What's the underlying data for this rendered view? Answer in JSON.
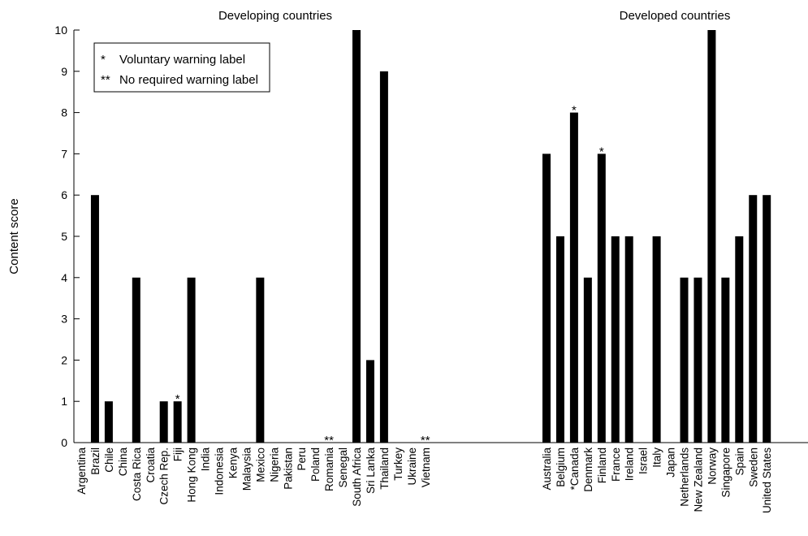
{
  "chart_data": {
    "type": "bar",
    "ylabel": "Content score",
    "ylim": [
      0,
      10
    ],
    "yticks": [
      0,
      1,
      2,
      3,
      4,
      5,
      6,
      7,
      8,
      9,
      10
    ],
    "group_labels": [
      "Developing countries",
      "Developed countries"
    ],
    "legend": [
      {
        "mark": "*",
        "label": "Voluntary warning label"
      },
      {
        "mark": "**",
        "label": "No required warning label"
      }
    ],
    "bar_color": "#000000",
    "groups": [
      {
        "name": "Developing countries",
        "categories": [
          "Argentina",
          "Brazil",
          "Chile",
          "China",
          "Costa Rica",
          "Croatia",
          "Czech Rep.",
          "Fiji",
          "Hong Kong",
          "India",
          "Indonesia",
          "Kenya",
          "Malaysia",
          "Mexico",
          "Nigeria",
          "Pakistan",
          "Peru",
          "Poland",
          "Romania",
          "Senegal",
          "South Africa",
          "Sri Lanka",
          "Thailand",
          "Turkey",
          "Ukraine",
          "Vietnam"
        ],
        "values": [
          0,
          6,
          1,
          0,
          4,
          0,
          1,
          1,
          4,
          0,
          0,
          0,
          0,
          4,
          0,
          0,
          0,
          0,
          0,
          0,
          10,
          2,
          9,
          0,
          0,
          0
        ],
        "markers": {
          "7": "*",
          "18": "**",
          "25": "**"
        }
      },
      {
        "name": "Developed countries",
        "categories": [
          "Australia",
          "Belgium",
          "*Canada",
          "Denmark",
          "Finland",
          "France",
          "Ireland",
          "Israel",
          "Italy",
          "Japan",
          "Netherlands",
          "New Zealand",
          "Norway",
          "Singapore",
          "Spain",
          "Sweden",
          "United States"
        ],
        "values": [
          7,
          5,
          8,
          4,
          7,
          5,
          5,
          0,
          5,
          0,
          4,
          4,
          10,
          4,
          5,
          6,
          6
        ],
        "markers": {
          "2": "*",
          "4": "*"
        }
      }
    ]
  }
}
